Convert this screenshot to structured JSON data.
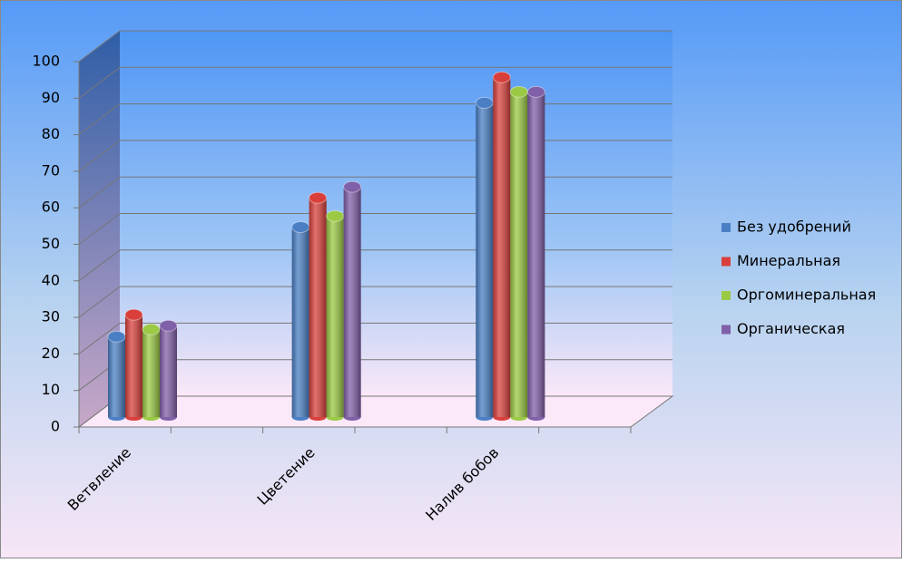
{
  "chart_data": {
    "type": "bar",
    "categories": [
      "Ветвление",
      "Цветение",
      "Налив бобов"
    ],
    "series": [
      {
        "name": "Без удобрений",
        "color": "#4a7fc4",
        "values": [
          22,
          52,
          86
        ]
      },
      {
        "name": "Минеральная",
        "color": "#d9403b",
        "values": [
          28,
          60,
          93
        ]
      },
      {
        "name": "Оргоминеральная",
        "color": "#9bc944",
        "values": [
          24,
          55,
          89
        ]
      },
      {
        "name": "Органическая",
        "color": "#8060a8",
        "values": [
          25,
          63,
          89
        ]
      }
    ],
    "ylim": [
      0,
      100
    ],
    "yticks": [
      0,
      10,
      20,
      30,
      40,
      50,
      60,
      70,
      80,
      90,
      100
    ],
    "grid": true,
    "legend": "right"
  }
}
